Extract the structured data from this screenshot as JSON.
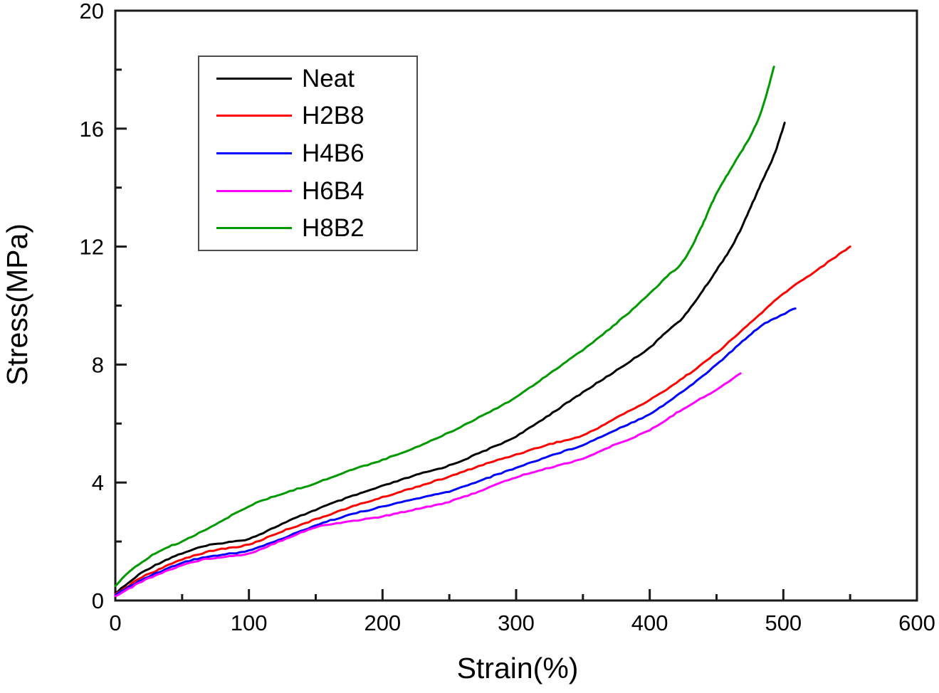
{
  "figure": {
    "background": "#ffffff",
    "axis_color": "#1a1a1a"
  },
  "chart_data": {
    "type": "line",
    "title": "",
    "xlabel": "Strain(%)",
    "ylabel": "Stress(MPa)",
    "xlim": [
      0,
      600
    ],
    "ylim": [
      0,
      20
    ],
    "x_major_ticks": [
      0,
      100,
      200,
      300,
      400,
      500,
      600
    ],
    "x_minor_step": 50,
    "y_major_ticks": [
      0,
      4,
      8,
      12,
      16,
      20
    ],
    "y_minor_step": 2,
    "grid": false,
    "legend_position": "upper-left",
    "series": [
      {
        "name": "Neat",
        "color": "#000000",
        "points": [
          [
            0,
            0.25
          ],
          [
            10,
            0.6
          ],
          [
            20,
            0.95
          ],
          [
            30,
            1.2
          ],
          [
            40,
            1.42
          ],
          [
            50,
            1.6
          ],
          [
            65,
            1.82
          ],
          [
            80,
            1.95
          ],
          [
            100,
            2.1
          ],
          [
            125,
            2.6
          ],
          [
            150,
            3.08
          ],
          [
            175,
            3.5
          ],
          [
            200,
            3.88
          ],
          [
            225,
            4.25
          ],
          [
            250,
            4.58
          ],
          [
            275,
            5.05
          ],
          [
            300,
            5.57
          ],
          [
            325,
            6.3
          ],
          [
            350,
            7.06
          ],
          [
            375,
            7.8
          ],
          [
            400,
            8.58
          ],
          [
            412,
            9.1
          ],
          [
            425,
            9.6
          ],
          [
            438,
            10.4
          ],
          [
            450,
            11.2
          ],
          [
            465,
            12.3
          ],
          [
            483,
            14.1
          ],
          [
            493,
            15.1
          ],
          [
            501,
            16.2
          ]
        ]
      },
      {
        "name": "H2B8",
        "color": "#ff0000",
        "points": [
          [
            0,
            0.2
          ],
          [
            10,
            0.5
          ],
          [
            20,
            0.8
          ],
          [
            30,
            1.0
          ],
          [
            40,
            1.2
          ],
          [
            50,
            1.4
          ],
          [
            65,
            1.6
          ],
          [
            80,
            1.75
          ],
          [
            100,
            1.9
          ],
          [
            125,
            2.35
          ],
          [
            150,
            2.75
          ],
          [
            175,
            3.15
          ],
          [
            200,
            3.5
          ],
          [
            225,
            3.85
          ],
          [
            250,
            4.2
          ],
          [
            275,
            4.6
          ],
          [
            300,
            4.95
          ],
          [
            325,
            5.3
          ],
          [
            350,
            5.6
          ],
          [
            375,
            6.2
          ],
          [
            400,
            6.8
          ],
          [
            425,
            7.55
          ],
          [
            450,
            8.4
          ],
          [
            475,
            9.4
          ],
          [
            500,
            10.4
          ],
          [
            525,
            11.2
          ],
          [
            550,
            12.0
          ]
        ]
      },
      {
        "name": "H4B6",
        "color": "#0000ff",
        "points": [
          [
            0,
            0.2
          ],
          [
            10,
            0.45
          ],
          [
            20,
            0.7
          ],
          [
            30,
            0.92
          ],
          [
            40,
            1.1
          ],
          [
            50,
            1.28
          ],
          [
            65,
            1.45
          ],
          [
            80,
            1.55
          ],
          [
            100,
            1.7
          ],
          [
            125,
            2.1
          ],
          [
            150,
            2.55
          ],
          [
            175,
            2.9
          ],
          [
            200,
            3.18
          ],
          [
            225,
            3.45
          ],
          [
            250,
            3.7
          ],
          [
            275,
            4.1
          ],
          [
            300,
            4.5
          ],
          [
            325,
            4.9
          ],
          [
            350,
            5.28
          ],
          [
            375,
            5.8
          ],
          [
            400,
            6.33
          ],
          [
            425,
            7.1
          ],
          [
            450,
            8.0
          ],
          [
            480,
            9.2
          ],
          [
            495,
            9.6
          ],
          [
            509,
            9.9
          ]
        ]
      },
      {
        "name": "H6B4",
        "color": "#ff00ff",
        "points": [
          [
            0,
            0.15
          ],
          [
            10,
            0.4
          ],
          [
            20,
            0.65
          ],
          [
            30,
            0.85
          ],
          [
            40,
            1.03
          ],
          [
            50,
            1.2
          ],
          [
            65,
            1.38
          ],
          [
            80,
            1.48
          ],
          [
            100,
            1.6
          ],
          [
            125,
            2.05
          ],
          [
            150,
            2.48
          ],
          [
            175,
            2.68
          ],
          [
            200,
            2.85
          ],
          [
            225,
            3.1
          ],
          [
            250,
            3.35
          ],
          [
            275,
            3.75
          ],
          [
            300,
            4.18
          ],
          [
            325,
            4.5
          ],
          [
            350,
            4.82
          ],
          [
            375,
            5.3
          ],
          [
            400,
            5.78
          ],
          [
            425,
            6.5
          ],
          [
            450,
            7.15
          ],
          [
            468,
            7.7
          ]
        ]
      },
      {
        "name": "H8B2",
        "color": "#009900",
        "points": [
          [
            0,
            0.5
          ],
          [
            10,
            0.95
          ],
          [
            20,
            1.3
          ],
          [
            30,
            1.6
          ],
          [
            40,
            1.82
          ],
          [
            50,
            2.0
          ],
          [
            65,
            2.35
          ],
          [
            80,
            2.7
          ],
          [
            100,
            3.2
          ],
          [
            125,
            3.62
          ],
          [
            150,
            3.98
          ],
          [
            175,
            4.4
          ],
          [
            200,
            4.77
          ],
          [
            225,
            5.2
          ],
          [
            250,
            5.7
          ],
          [
            275,
            6.28
          ],
          [
            300,
            6.9
          ],
          [
            325,
            7.7
          ],
          [
            350,
            8.5
          ],
          [
            375,
            9.4
          ],
          [
            400,
            10.4
          ],
          [
            413,
            11.0
          ],
          [
            425,
            11.5
          ],
          [
            438,
            12.6
          ],
          [
            450,
            13.8
          ],
          [
            463,
            14.8
          ],
          [
            477,
            15.9
          ],
          [
            485,
            16.8
          ],
          [
            493,
            18.1
          ]
        ]
      }
    ]
  }
}
